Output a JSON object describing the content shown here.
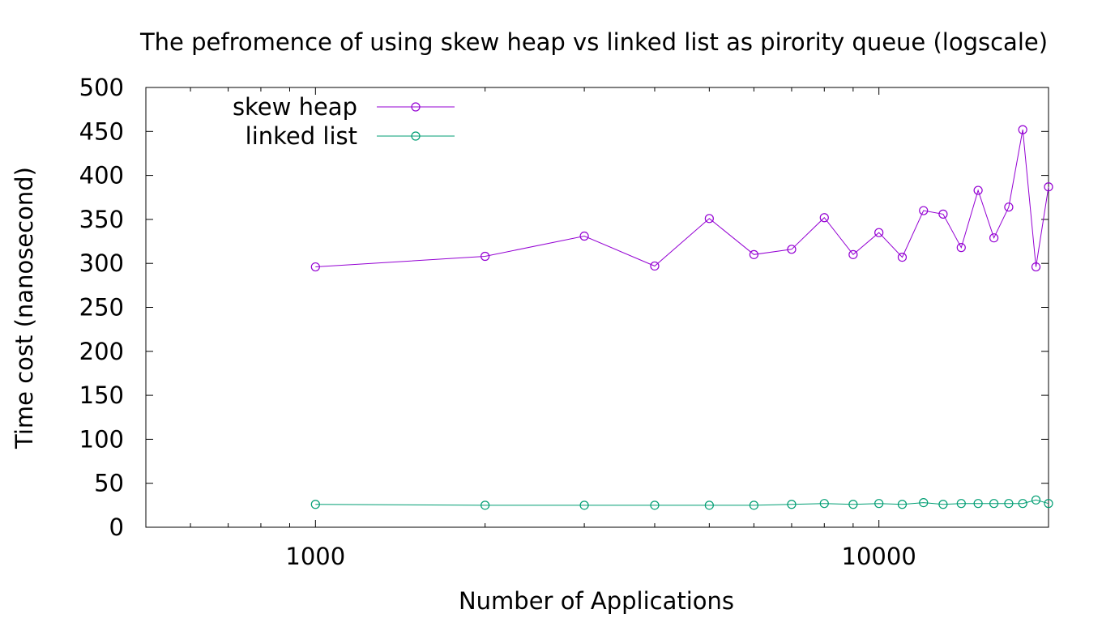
{
  "chart_data": {
    "type": "line",
    "title": "The pefromence of using skew heap vs linked list as pirority queue (logscale)",
    "xlabel": "Number of Applications",
    "ylabel": "Time cost (nanosecond)",
    "xscale": "log",
    "xlim": [
      500,
      20000
    ],
    "ylim": [
      0,
      500
    ],
    "yticks": [
      0,
      50,
      100,
      150,
      200,
      250,
      300,
      350,
      400,
      450,
      500
    ],
    "xticks_major": [
      1000,
      10000
    ],
    "xtick_labels": [
      "1000",
      "10000"
    ],
    "grid": false,
    "legend_position": "top-left",
    "x": [
      1000,
      2000,
      3000,
      4000,
      5000,
      6000,
      7000,
      8000,
      9000,
      10000,
      11000,
      12000,
      13000,
      14000,
      15000,
      16000,
      17000,
      18000,
      19000,
      20000
    ],
    "series": [
      {
        "name": "skew heap",
        "color": "#9400d3",
        "marker": "open-circle",
        "values": [
          296,
          308,
          331,
          297,
          351,
          310,
          316,
          352,
          310,
          335,
          307,
          360,
          356,
          318,
          383,
          329,
          364,
          452,
          296,
          387
        ]
      },
      {
        "name": "linked list",
        "color": "#009e73",
        "marker": "open-circle",
        "values": [
          26,
          25,
          25,
          25,
          25,
          25,
          26,
          27,
          26,
          27,
          26,
          28,
          26,
          27,
          27,
          27,
          27,
          27,
          31,
          27
        ]
      }
    ]
  }
}
